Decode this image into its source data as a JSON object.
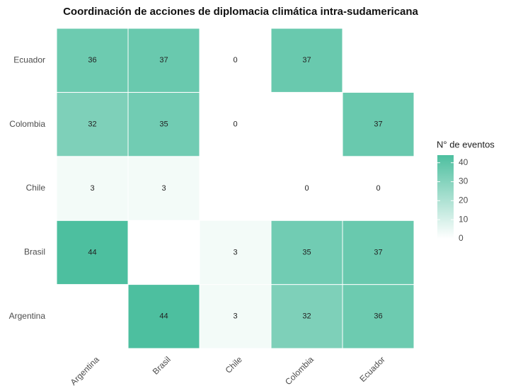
{
  "chart_data": {
    "type": "heatmap",
    "title": "Coordinación de acciones de diplomacia climática intra-sudamericana",
    "x": [
      "Argentina",
      "Brasil",
      "Chile",
      "Colombia",
      "Ecuador"
    ],
    "y": [
      "Argentina",
      "Brasil",
      "Chile",
      "Colombia",
      "Ecuador"
    ],
    "values": [
      [
        null,
        44,
        3,
        32,
        36
      ],
      [
        44,
        null,
        3,
        35,
        37
      ],
      [
        3,
        3,
        null,
        0,
        0
      ],
      [
        32,
        35,
        0,
        null,
        37
      ],
      [
        36,
        37,
        0,
        37,
        null
      ]
    ],
    "legend_title": "N° de eventos",
    "zlim": [
      0,
      44
    ],
    "zticks": [
      0,
      10,
      20,
      30,
      40
    ],
    "colorscale": [
      "#ffffff",
      "#4dbf9f"
    ]
  }
}
